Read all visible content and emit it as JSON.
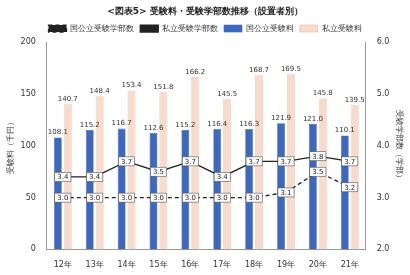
{
  "chart_data": {
    "type": "bar",
    "title": "<図表5> 受験料・受験学部数推移（設置者別）",
    "categories": [
      "12年",
      "13年",
      "14年",
      "15年",
      "16年",
      "17年",
      "18年",
      "19年",
      "20年",
      "21年"
    ],
    "y_label": "受験料（千円）",
    "y2_label": "受験学部数（学部）",
    "ylim": [
      0,
      200
    ],
    "yticks": [
      0,
      50,
      100,
      150,
      200
    ],
    "y2lim": [
      2,
      6
    ],
    "y2ticks": [
      {
        "value": 2,
        "label": "2.0"
      },
      {
        "value": 3,
        "label": "3.0"
      },
      {
        "value": 4,
        "label": "4.0"
      },
      {
        "value": 5,
        "label": "5.0"
      },
      {
        "value": 6,
        "label": "6.0"
      }
    ],
    "grid": false,
    "legend": "top",
    "data_labels": true,
    "series": [
      {
        "name": "国公立受験料",
        "type": "bar",
        "color": "#3c68bf",
        "values": [
          108.1,
          115.2,
          116.7,
          112.6,
          115.2,
          116.4,
          116.3,
          121.9,
          121.0,
          110.1
        ],
        "value_labels": [
          "108.1",
          "115.2",
          "116.7",
          "112.6",
          "115.2",
          "116.4",
          "116.3",
          "121.9",
          "121.0",
          "110.1"
        ]
      },
      {
        "name": "私立受験料",
        "type": "bar",
        "color": "#f8dccb",
        "values": [
          140.7,
          148.4,
          153.4,
          151.8,
          166.2,
          145.5,
          168.7,
          169.5,
          145.8,
          139.5
        ]
      },
      {
        "name": "国公立受験学部数",
        "type": "line",
        "axis": "y2",
        "color": "#222222",
        "line_style": "dashed",
        "marker": "none",
        "values": [
          3.0,
          3.0,
          3.0,
          3.0,
          3.0,
          3.0,
          3.0,
          3.1,
          3.5,
          3.2
        ],
        "value_labels": [
          "3.0",
          "3.0",
          "3.0",
          "3.0",
          "3.0",
          "3.0",
          "3.0",
          "3.1",
          "3.5",
          "3.2"
        ]
      },
      {
        "name": "私立受験学部数",
        "type": "line",
        "axis": "y2",
        "color": "#222222",
        "line_style": "solid",
        "marker": "none",
        "values": [
          3.4,
          3.4,
          3.7,
          3.5,
          3.7,
          3.4,
          3.7,
          3.7,
          3.8,
          3.7
        ]
      }
    ]
  }
}
